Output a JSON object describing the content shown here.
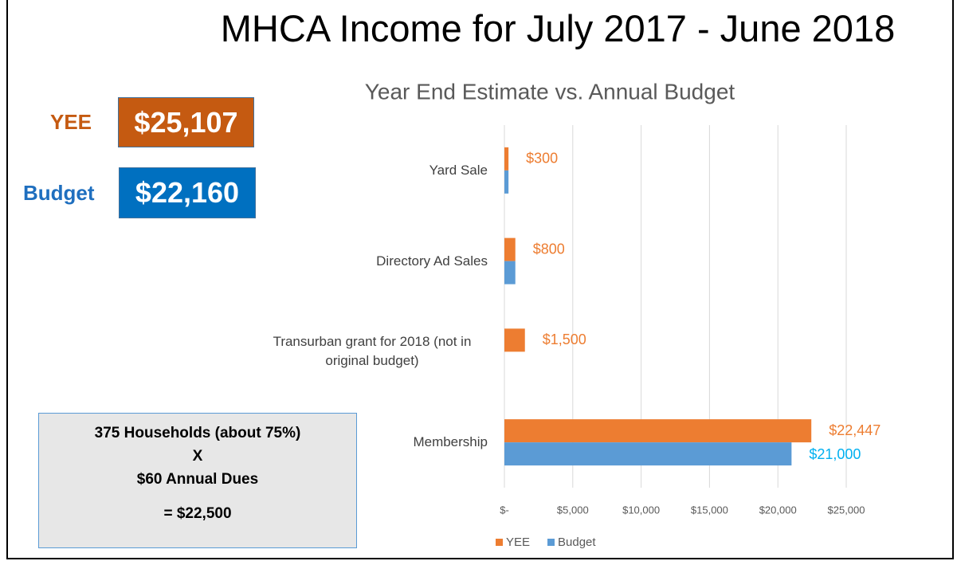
{
  "title": "MHCA Income for July 2017 - June 2018",
  "summary": {
    "yee_label": "YEE",
    "yee_value": "$25,107",
    "budget_label": "Budget",
    "budget_value": "$22,160"
  },
  "note": {
    "lines": [
      "375 Households (about 75%)",
      "X",
      "$60 Annual Dues",
      "= $22,500"
    ]
  },
  "chart_data": {
    "type": "hbar",
    "title": "Year End Estimate vs. Annual Budget",
    "categories": [
      "Yard Sale",
      "Directory Ad Sales",
      "Transurban grant for 2018 (not in original budget)",
      "Membership"
    ],
    "series": [
      {
        "name": "YEE",
        "color": "#ed7d31",
        "values": [
          300,
          800,
          1500,
          22447
        ],
        "value_labels": [
          "$300",
          "$800",
          "$1,500",
          "$22,447"
        ]
      },
      {
        "name": "Budget",
        "color": "#5b9bd5",
        "values": [
          300,
          800,
          null,
          21000
        ],
        "value_labels": [
          null,
          null,
          null,
          "$21,000"
        ]
      }
    ],
    "xlim": [
      0,
      25000
    ],
    "xticks": [
      {
        "value": 0,
        "label": "$-"
      },
      {
        "value": 5000,
        "label": "$5,000"
      },
      {
        "value": 10000,
        "label": "$10,000"
      },
      {
        "value": 15000,
        "label": "$15,000"
      },
      {
        "value": 20000,
        "label": "$20,000"
      },
      {
        "value": 25000,
        "label": "$25,000"
      }
    ],
    "grid": true,
    "legend": "bottom"
  }
}
